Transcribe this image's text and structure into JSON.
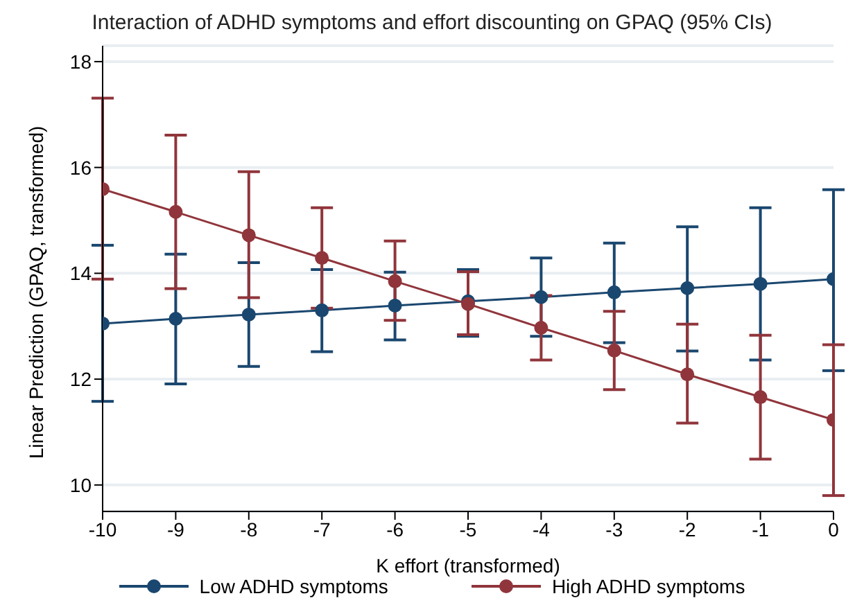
{
  "chart_data": {
    "type": "line",
    "title": "Interaction of ADHD symptoms and effort discounting on GPAQ (95% CIs)",
    "xlabel": "K effort (transformed)",
    "ylabel": "Linear Prediction (GPAQ, transformed)",
    "x": [
      -10,
      -9,
      -8,
      -7,
      -6,
      -5,
      -4,
      -3,
      -2,
      -1,
      0
    ],
    "series": [
      {
        "name": "Low ADHD symptoms",
        "color": "#1a476f",
        "values": [
          13.05,
          13.14,
          13.22,
          13.3,
          13.39,
          13.47,
          13.55,
          13.64,
          13.72,
          13.8,
          13.89
        ],
        "errors": [
          [
            11.58,
            14.53
          ],
          [
            11.91,
            14.36
          ],
          [
            12.24,
            14.2
          ],
          [
            12.52,
            14.07
          ],
          [
            12.74,
            14.02
          ],
          [
            12.81,
            14.07
          ],
          [
            12.81,
            14.29
          ],
          [
            12.69,
            14.57
          ],
          [
            12.53,
            14.88
          ],
          [
            12.36,
            15.24
          ],
          [
            12.16,
            15.58
          ]
        ]
      },
      {
        "name": "High ADHD symptoms",
        "color": "#90353b",
        "values": [
          15.59,
          15.16,
          14.72,
          14.29,
          13.85,
          13.42,
          12.97,
          12.54,
          12.09,
          11.66,
          11.23
        ],
        "errors": [
          [
            13.89,
            17.31
          ],
          [
            13.71,
            16.61
          ],
          [
            13.54,
            15.92
          ],
          [
            13.34,
            15.24
          ],
          [
            13.11,
            14.61
          ],
          [
            12.84,
            14.03
          ],
          [
            12.36,
            13.58
          ],
          [
            11.8,
            13.28
          ],
          [
            11.17,
            13.04
          ],
          [
            10.49,
            12.83
          ],
          [
            9.8,
            12.65
          ]
        ]
      }
    ],
    "xlim": [
      -10,
      0
    ],
    "xticks": [
      -10,
      -9,
      -8,
      -7,
      -6,
      -5,
      -4,
      -3,
      -2,
      -1,
      0
    ],
    "ylim": [
      9.5,
      18.3
    ],
    "yticks": [
      10,
      12,
      14,
      16,
      18
    ],
    "grid": "y",
    "legend": "bottom",
    "marker": "circle",
    "line_style": "solid"
  }
}
